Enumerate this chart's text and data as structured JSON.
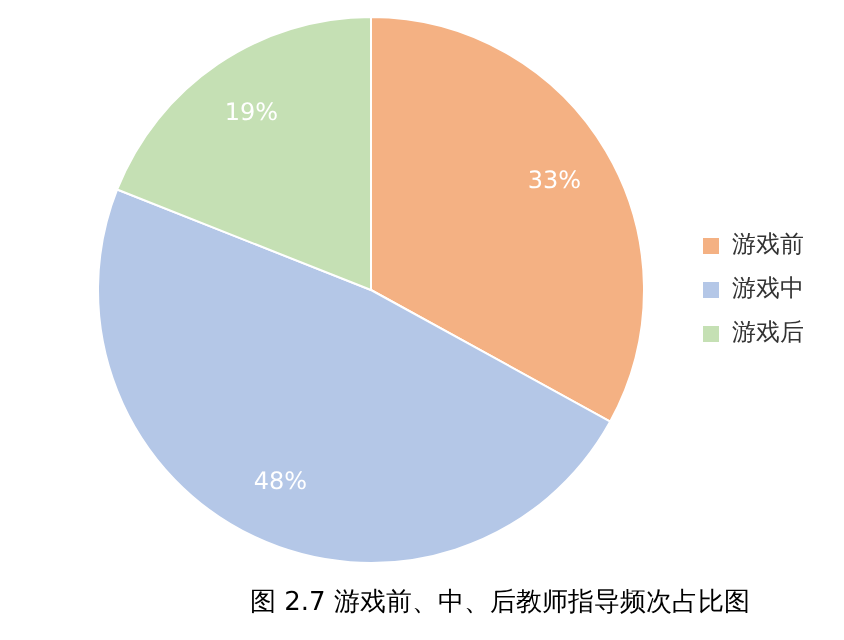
{
  "chart_data": {
    "type": "pie",
    "title": "图 2.7 游戏前、中、后教师指导频次占比图",
    "categories": [
      "游戏前",
      "游戏中",
      "游戏后"
    ],
    "values": [
      33,
      48,
      19
    ],
    "value_labels": [
      "33%",
      "48%",
      "19%"
    ],
    "colors": [
      "#f4b183",
      "#b4c7e7",
      "#c5e0b4"
    ],
    "legend": "right"
  }
}
